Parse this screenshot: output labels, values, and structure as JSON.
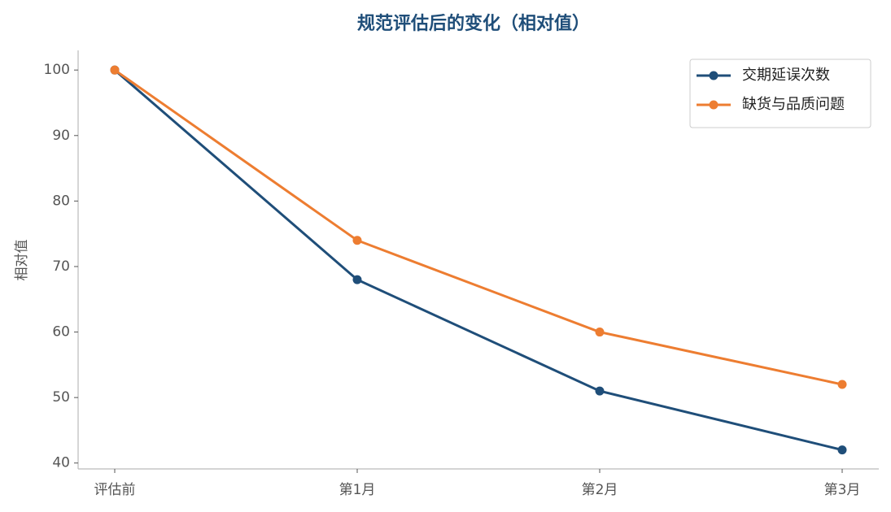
{
  "chart_data": {
    "type": "line",
    "title": "规范评估后的变化（相对值）",
    "y_label": "相对值",
    "categories": [
      "评估前",
      "第1月",
      "第2月",
      "第3月"
    ],
    "series": [
      {
        "name": "交期延误次数",
        "color": "#1f4e79",
        "values": [
          100,
          68,
          51,
          42
        ]
      },
      {
        "name": "缺货与品质问题",
        "color": "#ed7d31",
        "values": [
          100,
          74,
          60,
          52
        ]
      }
    ],
    "ylim": [
      39.1,
      103
    ],
    "yticks": [
      40,
      50,
      60,
      70,
      80,
      90,
      100
    ],
    "grid": false,
    "legend": "upper right"
  }
}
